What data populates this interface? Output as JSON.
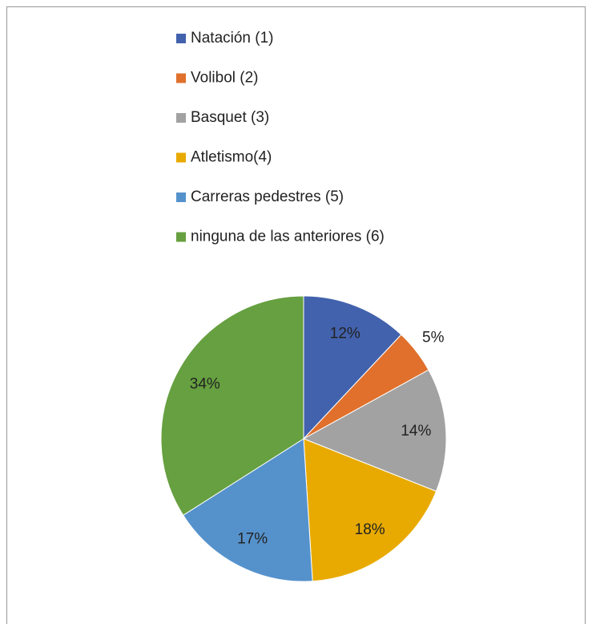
{
  "chart_data": {
    "type": "pie",
    "categories": [
      "Natación (1)",
      "Volibol (2)",
      "Basquet (3)",
      "Atletismo(4)",
      "Carreras pedestres (5)",
      "ninguna de las anteriores (6)"
    ],
    "values": [
      12,
      5,
      14,
      18,
      17,
      34
    ],
    "value_labels": [
      "12%",
      "5%",
      "14%",
      "18%",
      "17%",
      "34%"
    ],
    "colors": [
      "#4262ad",
      "#e0702c",
      "#a2a2a2",
      "#e8aa00",
      "#5592cc",
      "#66a040"
    ],
    "legend": "top"
  }
}
